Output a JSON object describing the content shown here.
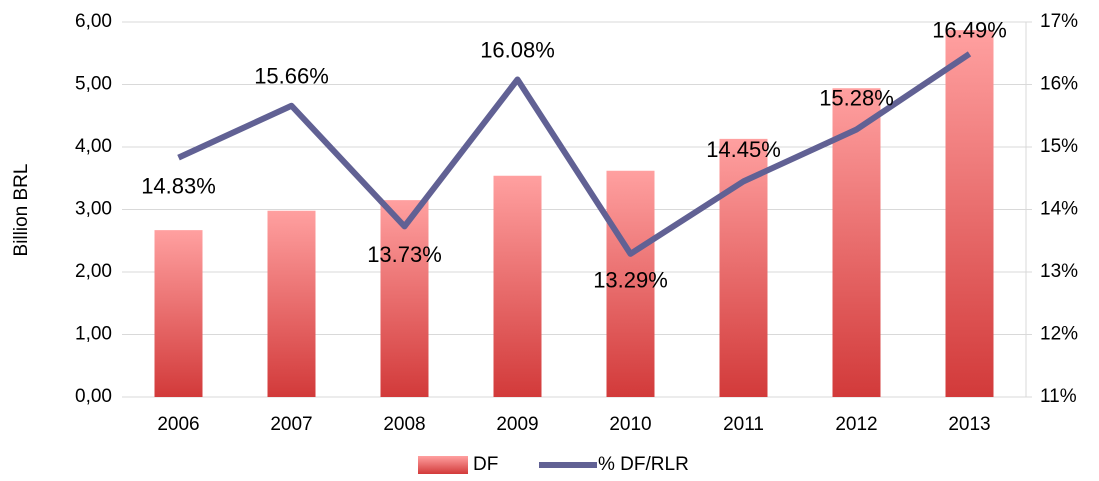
{
  "chart_data": {
    "type": "bar",
    "y_label": "Billion BRL",
    "categories": [
      "2006",
      "2007",
      "2008",
      "2009",
      "2010",
      "2011",
      "2012",
      "2013"
    ],
    "series": [
      {
        "name": "DF",
        "type": "bar",
        "color": "#e85a5a",
        "values": [
          2.67,
          2.98,
          3.15,
          3.54,
          3.62,
          4.13,
          4.94,
          5.87
        ]
      },
      {
        "name": "% DF/RLR",
        "type": "line",
        "axis": "y2",
        "color": "#616194",
        "values": [
          14.83,
          15.66,
          13.73,
          16.08,
          13.29,
          14.45,
          15.28,
          16.49
        ],
        "value_labels": [
          "14.83%",
          "15.66%",
          "13.73%",
          "16.08%",
          "13.29%",
          "14.45%",
          "15.28%",
          "16.49%"
        ]
      }
    ],
    "ylim": [
      0,
      6
    ],
    "yticks": [
      {
        "value": 0,
        "label": "0,00"
      },
      {
        "value": 1,
        "label": "1,00"
      },
      {
        "value": 2,
        "label": "2,00"
      },
      {
        "value": 3,
        "label": "3,00"
      },
      {
        "value": 4,
        "label": "4,00"
      },
      {
        "value": 5,
        "label": "5,00"
      },
      {
        "value": 6,
        "label": "6,00"
      }
    ],
    "y2lim": [
      11,
      17
    ],
    "y2ticks": [
      {
        "value": 11,
        "label": "11%"
      },
      {
        "value": 12,
        "label": "12%"
      },
      {
        "value": 13,
        "label": "13%"
      },
      {
        "value": 14,
        "label": "14%"
      },
      {
        "value": 15,
        "label": "15%"
      },
      {
        "value": 16,
        "label": "16%"
      },
      {
        "value": 17,
        "label": "17%"
      }
    ],
    "grid": true,
    "legend": "bottom"
  }
}
